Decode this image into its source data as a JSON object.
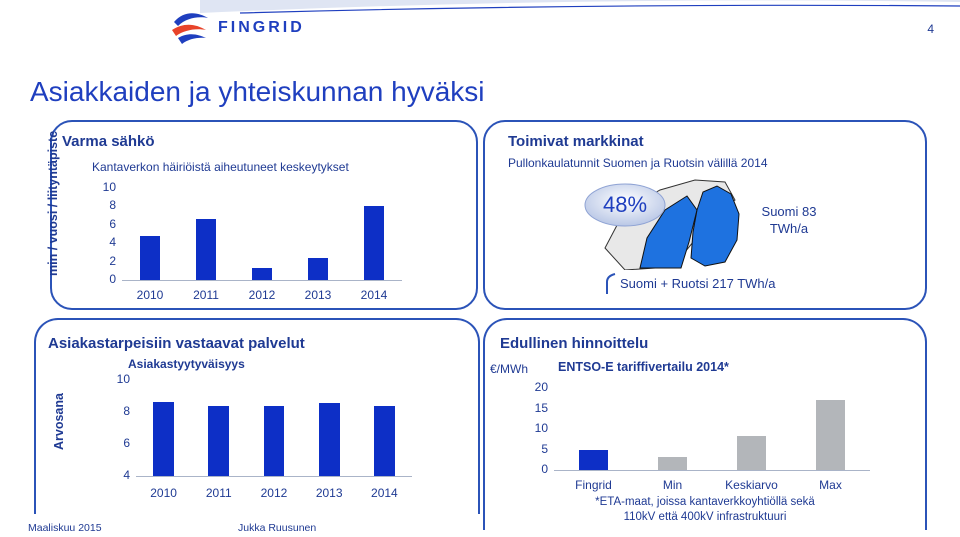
{
  "header": {
    "logo_text": "FINGRID",
    "page_number": "4",
    "title": "Asiakkaiden ja yhteiskunnan hyväksi"
  },
  "panel1": {
    "title": "Varma sähkö",
    "y_axis_title": "min / vuosi / liityntäpiste",
    "chart_data": {
      "type": "bar",
      "title": "Kantaverkon häiriöistä aiheutuneet keskeytykset",
      "categories": [
        "2010",
        "2011",
        "2012",
        "2013",
        "2014"
      ],
      "values": [
        4.8,
        6.6,
        1.3,
        2.4,
        8.0
      ],
      "ylim": [
        0,
        10
      ],
      "yticks": [
        "10",
        "8",
        "6",
        "4",
        "2",
        "0"
      ],
      "ylabel": "min / vuosi / liityntäpiste",
      "color": "#0d2fc6"
    }
  },
  "panel2": {
    "title": "Toimivat markkinat",
    "subtitle": "Pullonkaulatunnit Suomen ja Ruotsin välillä 2014",
    "percent": "48%",
    "finland_label_1": "Suomi 83",
    "finland_label_2": "TWh/a",
    "combined_label": "Suomi + Ruotsi 217 TWh/a"
  },
  "panel3": {
    "title": "Asiakastarpeisiin vastaavat palvelut",
    "y_axis_title": "Arvosana",
    "chart_data": {
      "type": "bar",
      "title": "Asiakastyytyväisyys",
      "categories": [
        "2010",
        "2011",
        "2012",
        "2013",
        "2014"
      ],
      "values": [
        8.6,
        8.4,
        8.35,
        8.55,
        8.35
      ],
      "ylim": [
        4,
        10
      ],
      "yticks": [
        "10",
        "8",
        "6",
        "4"
      ],
      "ylabel": "Arvosana",
      "color": "#0d2fc6"
    }
  },
  "panel4": {
    "title": "Edullinen hinnoittelu",
    "unit": "€/MWh",
    "footnote_1": "*ETA-maat, joissa kantaverkkoyhtiöllä sekä",
    "footnote_2": "110kV että 400kV infrastruktuuri",
    "chart_data": {
      "type": "bar",
      "title": "ENTSO-E tariffivertailu 2014*",
      "categories": [
        "Fingrid",
        "Min",
        "Keskiarvo",
        "Max"
      ],
      "values": [
        4.9,
        3.1,
        8.3,
        17.0
      ],
      "colors": [
        "#0d2fc6",
        "#b3b6ba",
        "#b3b6ba",
        "#b3b6ba"
      ],
      "ylim": [
        0,
        20
      ],
      "yticks": [
        "20",
        "15",
        "10",
        "5",
        "0"
      ],
      "ylabel": "€/MWh"
    }
  },
  "footer": {
    "date": "Maaliskuu 2015",
    "author": "Jukka Ruusunen"
  }
}
